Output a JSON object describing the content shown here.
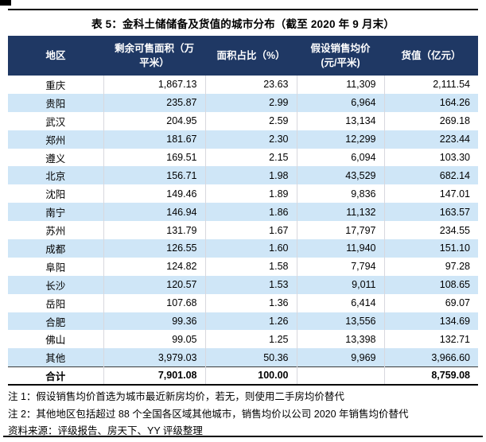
{
  "title": "表 5：金科土储储备及货值的城市分布（截至 2020 年 9 月末）",
  "colors": {
    "header_bg": "#1F3864",
    "header_text": "#FFFFFF",
    "alt_row_bg": "#CFE6F7",
    "rule": "#000000"
  },
  "table": {
    "headers": [
      "地区",
      "剩余可售面积（万\n平米）",
      "面积占比（%）",
      "假设销售均价\n(元/平米)",
      "货值（亿元）"
    ],
    "rows": [
      {
        "region": "重庆",
        "area": "1,867.13",
        "share": "23.63",
        "price": "11,309",
        "value": "2,111.54"
      },
      {
        "region": "贵阳",
        "area": "235.87",
        "share": "2.99",
        "price": "6,964",
        "value": "164.26"
      },
      {
        "region": "武汉",
        "area": "204.95",
        "share": "2.59",
        "price": "13,134",
        "value": "269.18"
      },
      {
        "region": "郑州",
        "area": "181.67",
        "share": "2.30",
        "price": "12,299",
        "value": "223.44"
      },
      {
        "region": "遵义",
        "area": "169.51",
        "share": "2.15",
        "price": "6,094",
        "value": "103.30"
      },
      {
        "region": "北京",
        "area": "156.71",
        "share": "1.98",
        "price": "43,529",
        "value": "682.14"
      },
      {
        "region": "沈阳",
        "area": "149.46",
        "share": "1.89",
        "price": "9,836",
        "value": "147.01"
      },
      {
        "region": "南宁",
        "area": "146.94",
        "share": "1.86",
        "price": "11,132",
        "value": "163.57"
      },
      {
        "region": "苏州",
        "area": "131.79",
        "share": "1.67",
        "price": "17,797",
        "value": "234.55"
      },
      {
        "region": "成都",
        "area": "126.55",
        "share": "1.60",
        "price": "11,940",
        "value": "151.10"
      },
      {
        "region": "阜阳",
        "area": "124.82",
        "share": "1.58",
        "price": "7,794",
        "value": "97.28"
      },
      {
        "region": "长沙",
        "area": "120.57",
        "share": "1.53",
        "price": "9,011",
        "value": "108.65"
      },
      {
        "region": "岳阳",
        "area": "107.68",
        "share": "1.36",
        "price": "6,414",
        "value": "69.07"
      },
      {
        "region": "合肥",
        "area": "99.36",
        "share": "1.26",
        "price": "13,556",
        "value": "134.69"
      },
      {
        "region": "佛山",
        "area": "99.05",
        "share": "1.25",
        "price": "13,398",
        "value": "132.71"
      },
      {
        "region": "其他",
        "area": "3,979.03",
        "share": "50.36",
        "price": "9,969",
        "value": "3,966.60"
      }
    ],
    "total_row": {
      "region": "合计",
      "area": "7,901.08",
      "share": "100.00",
      "price": "",
      "value": "8,759.08"
    }
  },
  "notes": [
    "注 1：假设销售均价首选为城市最近新房均价，若无，则使用二手房均价替代",
    "注 2：其他地区包括超过 88 个全国各区域其他城市，销售均价以公司 2020 年销售均价替代"
  ],
  "source": "资料来源：评级报告、房天下、YY 评级整理"
}
